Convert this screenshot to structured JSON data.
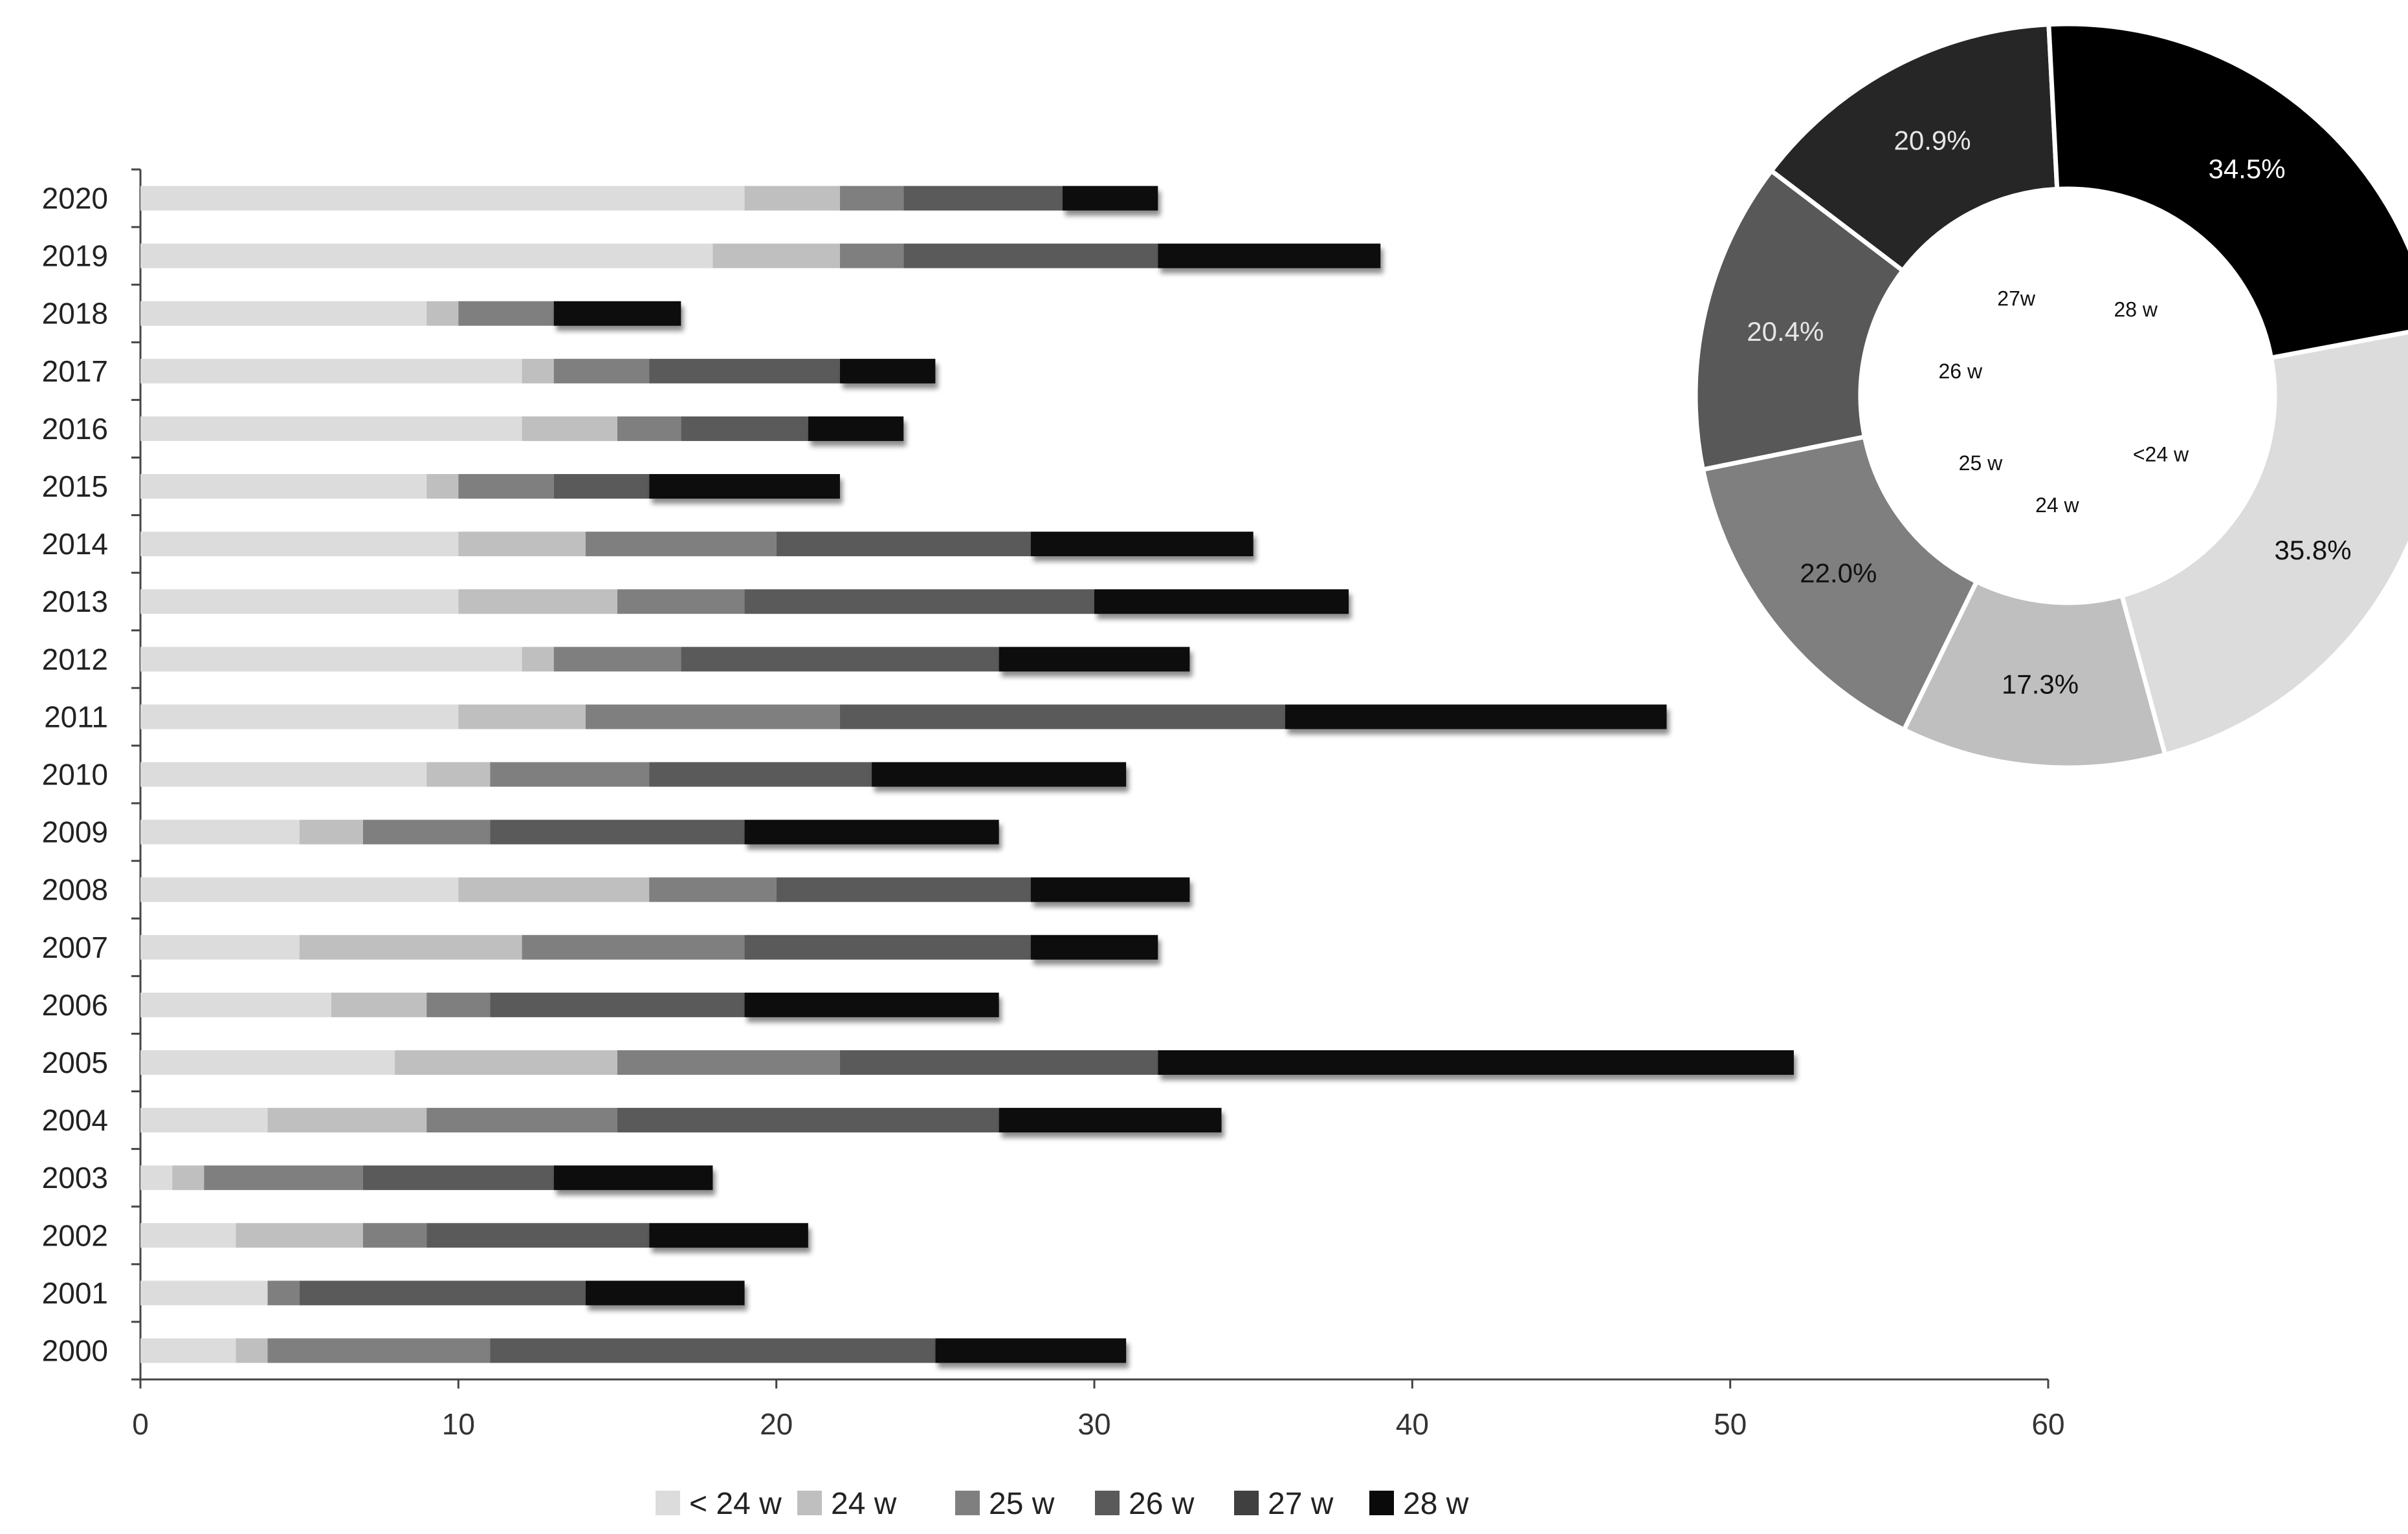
{
  "chart_data": [
    {
      "type": "bar",
      "orientation": "horizontal",
      "stacked": true,
      "categories": [
        "2020",
        "2019",
        "2018",
        "2017",
        "2016",
        "2015",
        "2014",
        "2013",
        "2012",
        "2011",
        "2010",
        "2009",
        "2008",
        "2007",
        "2006",
        "2005",
        "2004",
        "2003",
        "2002",
        "2001",
        "2000"
      ],
      "series": [
        {
          "name": "< 24 w",
          "color": "#dcdcdc",
          "values": [
            19,
            18,
            9,
            12,
            12,
            9,
            10,
            10,
            12,
            10,
            9,
            5,
            10,
            5,
            6,
            8,
            4,
            1,
            3,
            4,
            3
          ]
        },
        {
          "name": "24 w",
          "color": "#bfbfbf",
          "values": [
            3,
            4,
            1,
            1,
            3,
            1,
            4,
            5,
            1,
            4,
            2,
            2,
            6,
            7,
            3,
            7,
            5,
            1,
            4,
            0,
            1
          ]
        },
        {
          "name": "25 w",
          "color": "#7f7f7f",
          "values": [
            2,
            2,
            3,
            3,
            2,
            3,
            6,
            4,
            4,
            8,
            5,
            4,
            4,
            7,
            2,
            7,
            6,
            5,
            2,
            1,
            7
          ]
        },
        {
          "name": "26 w",
          "color": "#5a5a5a",
          "values": [
            5,
            8,
            0,
            6,
            4,
            3,
            8,
            11,
            10,
            14,
            7,
            8,
            8,
            9,
            8,
            10,
            12,
            6,
            7,
            9,
            14
          ]
        },
        {
          "name": "27 w",
          "color": "#404040",
          "values": [
            0,
            0,
            0,
            0,
            0,
            0,
            0,
            0,
            0,
            0,
            0,
            0,
            0,
            0,
            0,
            0,
            0,
            0,
            0,
            0,
            0
          ]
        },
        {
          "name": "28 w",
          "color": "#0a0a0a",
          "values": [
            3,
            7,
            4,
            3,
            3,
            6,
            7,
            8,
            6,
            12,
            8,
            8,
            5,
            4,
            8,
            20,
            7,
            5,
            5,
            5,
            6
          ]
        }
      ],
      "xlim": [
        0,
        60
      ],
      "xticks": [
        "0",
        "10",
        "20",
        "30",
        "40",
        "50",
        "60"
      ],
      "legend_position": "bottom",
      "grid": false
    },
    {
      "type": "pie",
      "donut": true,
      "slices": [
        {
          "label": "<24 w",
          "value": 35.8,
          "display": "35.8%",
          "color": "#dcdcdc",
          "text_color": "#111111"
        },
        {
          "label": "24 w",
          "value": 17.3,
          "display": "17.3%",
          "color": "#bfbfbf",
          "text_color": "#111111"
        },
        {
          "label": "25 w",
          "value": 22.0,
          "display": "22.0%",
          "color": "#7f7f7f",
          "text_color": "#111111"
        },
        {
          "label": "26 w",
          "value": 20.4,
          "display": "20.4%",
          "color": "#585858",
          "text_color": "#e6e6e6"
        },
        {
          "label": "27w",
          "value": 20.9,
          "display": "20.9%",
          "color": "#262626",
          "text_color": "#e6e6e6"
        },
        {
          "label": "28 w",
          "value": 34.5,
          "display": "34.5%",
          "color": "#000000",
          "text_color": "#ffffff"
        }
      ]
    }
  ]
}
